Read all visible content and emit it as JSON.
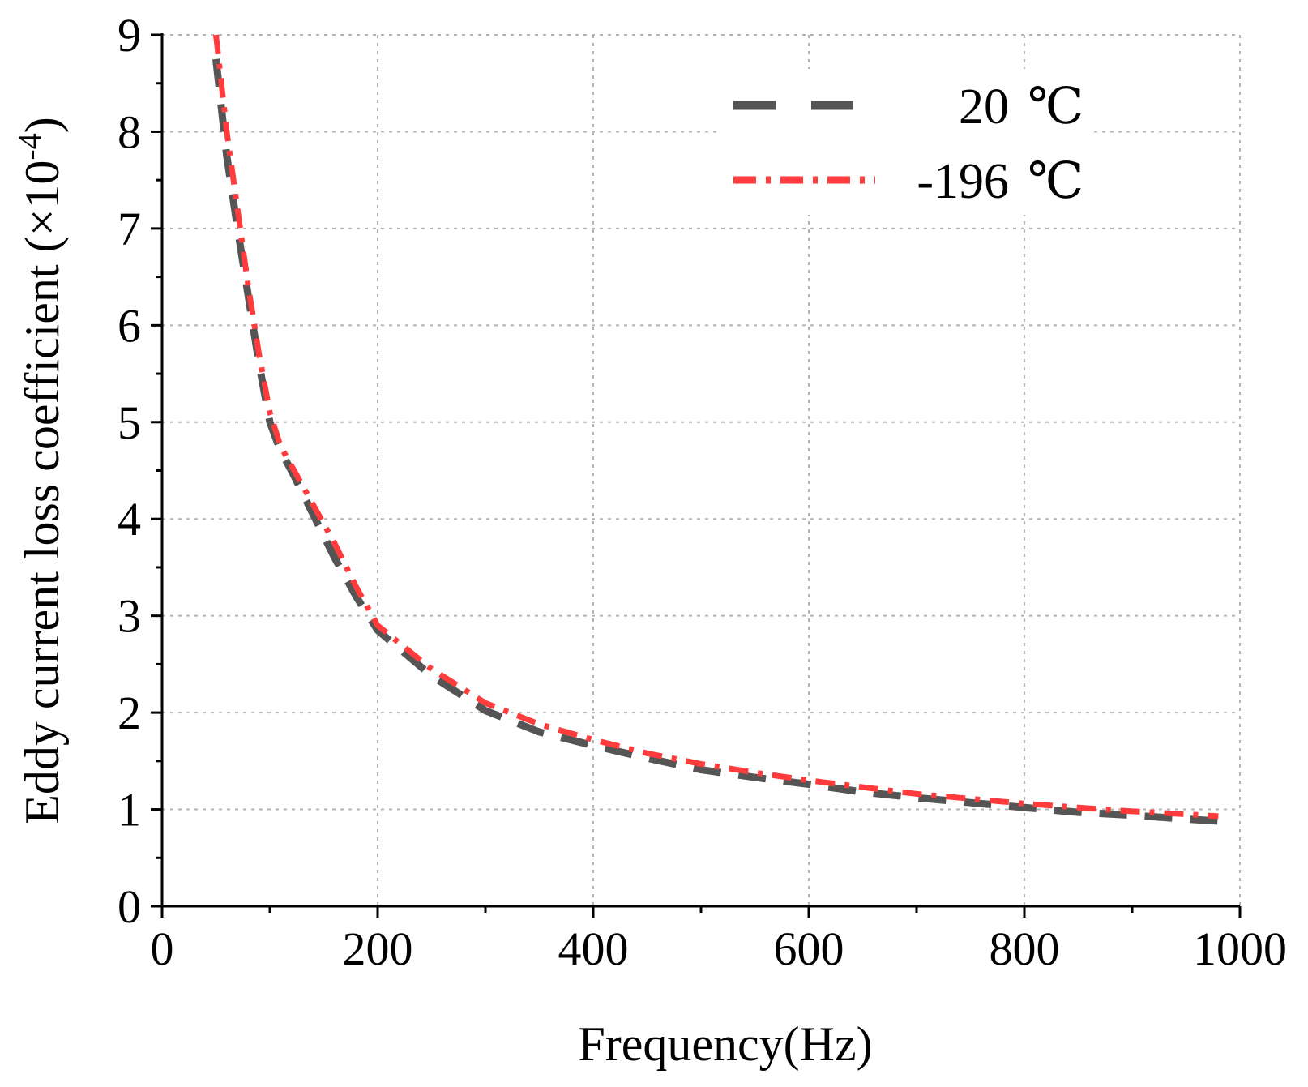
{
  "chart_data": {
    "type": "line",
    "title": "",
    "xlabel": "Frequency(Hz)",
    "ylabel": "Eddy current loss coefficient (×10",
    "ylabel_exponent": "-4",
    "ylabel_suffix": ")",
    "xlim": [
      0,
      1000
    ],
    "ylim": [
      0,
      9
    ],
    "x_ticks": [
      0,
      200,
      400,
      600,
      800,
      1000
    ],
    "x_tick_labels": [
      "0",
      "200",
      "400",
      "600",
      "800",
      "1000"
    ],
    "y_ticks": [
      0,
      1,
      2,
      3,
      4,
      5,
      6,
      7,
      8,
      9
    ],
    "y_tick_labels": [
      "0",
      "1",
      "2",
      "3",
      "4",
      "5",
      "6",
      "7",
      "8",
      "9"
    ],
    "grid": true,
    "legend_position": "top-right",
    "series": [
      {
        "name": "20 ℃",
        "label_number": "20",
        "label_unit": "℃",
        "color": "#555555",
        "style": "dash",
        "x": [
          50,
          60,
          70,
          80,
          90,
          100,
          110,
          120,
          140,
          160,
          180,
          200,
          250,
          300,
          350,
          400,
          450,
          500,
          550,
          600,
          650,
          700,
          750,
          800,
          850,
          900,
          950,
          980
        ],
        "y": [
          8.75,
          7.75,
          7.0,
          6.3,
          5.6,
          5.0,
          4.7,
          4.5,
          4.05,
          3.6,
          3.2,
          2.85,
          2.38,
          2.02,
          1.8,
          1.66,
          1.53,
          1.41,
          1.33,
          1.26,
          1.18,
          1.12,
          1.07,
          1.02,
          0.97,
          0.94,
          0.9,
          0.88
        ]
      },
      {
        "name": "-196 ℃",
        "label_number": "-196",
        "label_unit": "℃",
        "color": "#ff3b3b",
        "style": "dashdot",
        "x": [
          50,
          60,
          70,
          80,
          90,
          100,
          110,
          120,
          140,
          160,
          180,
          200,
          250,
          300,
          350,
          400,
          450,
          500,
          550,
          600,
          650,
          700,
          750,
          800,
          850,
          900,
          950,
          980
        ],
        "y": [
          9.0,
          8.0,
          7.2,
          6.4,
          5.7,
          5.1,
          4.75,
          4.55,
          4.15,
          3.75,
          3.3,
          2.9,
          2.45,
          2.1,
          1.88,
          1.72,
          1.58,
          1.47,
          1.38,
          1.3,
          1.23,
          1.16,
          1.11,
          1.06,
          1.02,
          0.98,
          0.95,
          0.93
        ]
      }
    ]
  }
}
